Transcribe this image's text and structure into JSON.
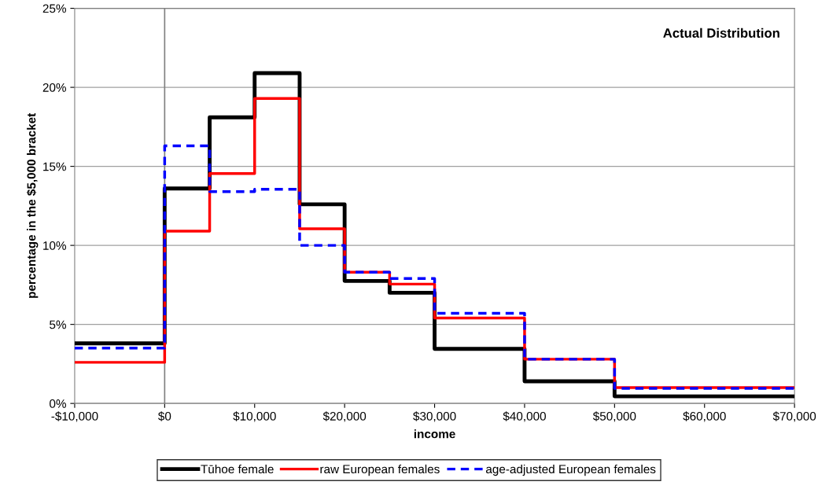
{
  "chart_data": {
    "type": "histogram",
    "title": "Actual Distribution",
    "xlabel": "income",
    "ylabel": "percentage in the $5,000 bracket",
    "bins": [
      -10000,
      0,
      5000,
      10000,
      15000,
      20000,
      25000,
      30000,
      40000,
      50000,
      70000
    ],
    "series": [
      {
        "name": "Tūhoe female",
        "color": "#000000",
        "line_style": "solid",
        "values": [
          3.8,
          13.6,
          18.1,
          20.9,
          12.6,
          7.75,
          7.0,
          3.45,
          1.4,
          0.45
        ]
      },
      {
        "name": "raw European females",
        "color": "#ff0000",
        "line_style": "solid",
        "values": [
          2.6,
          10.9,
          14.55,
          19.3,
          11.05,
          8.3,
          7.55,
          5.4,
          2.8,
          1.0
        ]
      },
      {
        "name": "age-adjusted European females",
        "color": "#0000ff",
        "line_style": "dashed",
        "values": [
          3.5,
          16.3,
          13.4,
          13.55,
          10.0,
          8.3,
          7.9,
          5.7,
          2.8,
          0.95
        ]
      }
    ],
    "xlim": [
      -10000,
      70000
    ],
    "xticks": [
      {
        "value": -10000,
        "label": "-$10,000"
      },
      {
        "value": 0,
        "label": "$0"
      },
      {
        "value": 10000,
        "label": "$10,000"
      },
      {
        "value": 20000,
        "label": "$20,000"
      },
      {
        "value": 30000,
        "label": "$30,000"
      },
      {
        "value": 40000,
        "label": "$40,000"
      },
      {
        "value": 50000,
        "label": "$50,000"
      },
      {
        "value": 60000,
        "label": "$60,000"
      },
      {
        "value": 70000,
        "label": "$70,000"
      }
    ],
    "ylim": [
      0,
      25
    ],
    "yticks": [
      {
        "value": 0,
        "label": "0%"
      },
      {
        "value": 5,
        "label": "5%"
      },
      {
        "value": 10,
        "label": "10%"
      },
      {
        "value": 15,
        "label": "15%"
      },
      {
        "value": 20,
        "label": "20%"
      },
      {
        "value": 25,
        "label": "25%"
      }
    ],
    "ref_lines": [
      {
        "axis": "x",
        "value": 0,
        "color": "#808080"
      }
    ],
    "grid": "y",
    "legend": "bottom"
  }
}
